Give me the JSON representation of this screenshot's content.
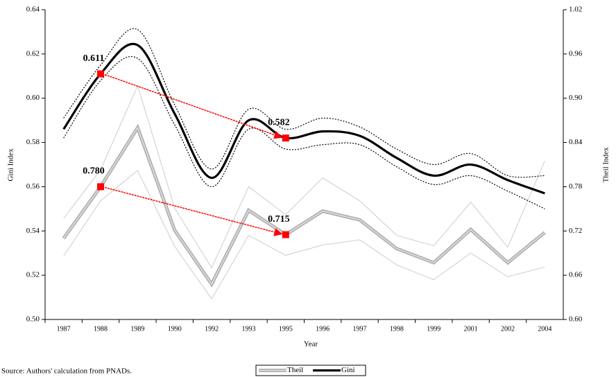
{
  "chart_data": {
    "type": "line",
    "x_label": "Year",
    "y_label": "Gini Index",
    "y2_label": "Theil Index",
    "source": "Source: Authors' calculation from PNADs.",
    "categories": [
      "1987",
      "1988",
      "1989",
      "1990",
      "1992",
      "1993",
      "1995",
      "1996",
      "1997",
      "1998",
      "1999",
      "2001",
      "2002",
      "2004"
    ],
    "ylim": [
      0.5,
      0.64
    ],
    "yticks": [
      {
        "value": 0.5,
        "label": "0.50"
      },
      {
        "value": 0.52,
        "label": "0.52"
      },
      {
        "value": 0.54,
        "label": "0.54"
      },
      {
        "value": 0.56,
        "label": "0.56"
      },
      {
        "value": 0.58,
        "label": "0.58"
      },
      {
        "value": 0.6,
        "label": "0.60"
      },
      {
        "value": 0.62,
        "label": "0.62"
      },
      {
        "value": 0.64,
        "label": "0.64"
      }
    ],
    "y2lim": [
      0.6,
      1.02
    ],
    "y2ticks": [
      {
        "value": 0.6,
        "label": "0.60"
      },
      {
        "value": 0.66,
        "label": "0.66"
      },
      {
        "value": 0.72,
        "label": "0.72"
      },
      {
        "value": 0.78,
        "label": "0.78"
      },
      {
        "value": 0.84,
        "label": "0.84"
      },
      {
        "value": 0.9,
        "label": "0.90"
      },
      {
        "value": 0.96,
        "label": "0.96"
      },
      {
        "value": 1.02,
        "label": "1.02"
      }
    ],
    "series": [
      {
        "color": "#cccccc",
        "axis": "y2",
        "line_style": "thin",
        "values": [
          0.737,
          0.803,
          0.917,
          0.751,
          0.67,
          0.78,
          0.742,
          0.792,
          0.761,
          0.714,
          0.7,
          0.759,
          0.698,
          0.815
        ]
      },
      {
        "color": "#cccccc",
        "axis": "y2",
        "line_style": "thin",
        "values": [
          0.686,
          0.761,
          0.802,
          0.699,
          0.628,
          0.714,
          0.687,
          0.701,
          0.708,
          0.674,
          0.654,
          0.69,
          0.658,
          0.671
        ]
      },
      {
        "name": "Theil",
        "color": "#b0b0b0",
        "axis": "y2",
        "line_style": "double",
        "values": [
          0.71,
          0.78,
          0.86,
          0.721,
          0.648,
          0.748,
          0.715,
          0.747,
          0.735,
          0.696,
          0.677,
          0.722,
          0.677,
          0.718
        ]
      },
      {
        "color": "#000000",
        "axis": "y",
        "line_style": "dotted",
        "smooth": true,
        "values": [
          0.591,
          0.615,
          0.631,
          0.597,
          0.568,
          0.595,
          0.586,
          0.591,
          0.587,
          0.577,
          0.57,
          0.575,
          0.565,
          0.565
        ]
      },
      {
        "color": "#000000",
        "axis": "y",
        "line_style": "dotted",
        "smooth": true,
        "values": [
          0.582,
          0.608,
          0.618,
          0.588,
          0.56,
          0.586,
          0.577,
          0.579,
          0.579,
          0.569,
          0.561,
          0.565,
          0.558,
          0.55
        ]
      },
      {
        "name": "Gini",
        "color": "#000000",
        "axis": "y",
        "line_style": "thick",
        "smooth": true,
        "values": [
          0.586,
          0.611,
          0.624,
          0.593,
          0.564,
          0.59,
          0.582,
          0.585,
          0.583,
          0.573,
          0.565,
          0.57,
          0.563,
          0.557
        ]
      }
    ],
    "annotations": [
      {
        "category": "1988",
        "value": 0.611,
        "label": "0.611",
        "axis": "y"
      },
      {
        "category": "1995",
        "value": 0.582,
        "label": "0.582",
        "axis": "y"
      },
      {
        "category": "1988",
        "value": 0.78,
        "label": "0.780",
        "axis": "y2"
      },
      {
        "category": "1995",
        "value": 0.715,
        "label": "0.715",
        "axis": "y2"
      }
    ],
    "annotation_color": "#ff0000"
  }
}
